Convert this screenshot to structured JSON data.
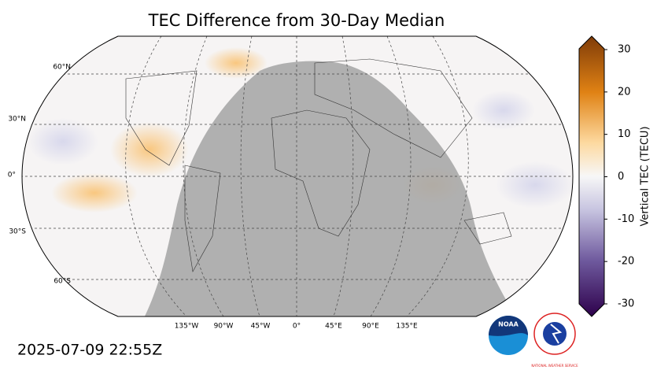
{
  "title": "TEC Difference from 30-Day Median",
  "timestamp": "2025-07-09 22:55Z",
  "lat_labels": [
    "60°N",
    "30°N",
    "0°",
    "30°S",
    "60°S"
  ],
  "lon_labels": [
    "135°W",
    "90°W",
    "45°W",
    "0°",
    "45°E",
    "90°E",
    "135°E"
  ],
  "colorbar": {
    "label": "Vertical TEC (TECU)",
    "lim": [
      -30,
      30
    ],
    "ticks": [
      -30,
      -20,
      -10,
      0,
      10,
      20,
      30
    ]
  },
  "logos": {
    "noaa": "NOAA",
    "nws": "NATIONAL WEATHER SERVICE"
  }
}
